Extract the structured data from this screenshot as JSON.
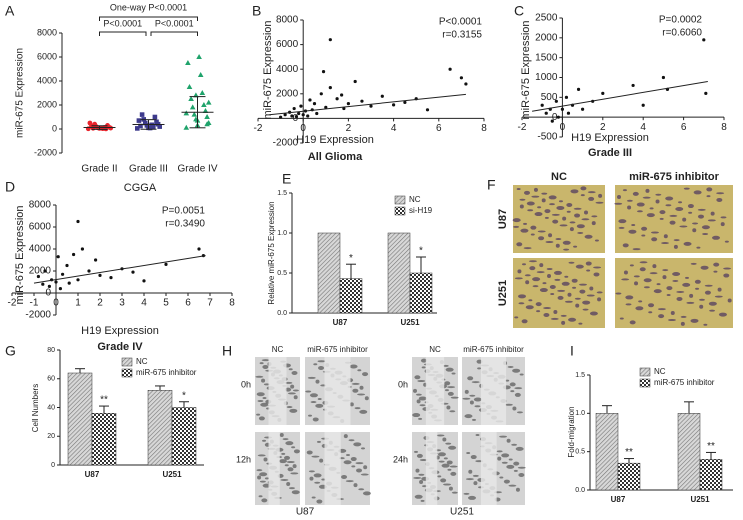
{
  "chart_data": [
    {
      "type": "dot_plot",
      "panel": "A",
      "ylabel": "miR-675 Expression",
      "xlabel": "CGGA",
      "categories": [
        "Grade II",
        "Grade III",
        "Grade IV"
      ],
      "colors": [
        "#e8242c",
        "#3d3a8c",
        "#1fa36b"
      ],
      "markers": [
        "circle",
        "square",
        "triangle"
      ],
      "values": [
        [
          20,
          50,
          80,
          100,
          150,
          200,
          300,
          400,
          10,
          60,
          120,
          250,
          30,
          500,
          90
        ],
        [
          50,
          100,
          200,
          300,
          400,
          500,
          600,
          800,
          1000,
          1200,
          150,
          250,
          350,
          700,
          80
        ],
        [
          100,
          300,
          500,
          800,
          1000,
          1200,
          1500,
          1800,
          2000,
          2500,
          3000,
          3500,
          4500,
          5500,
          6000,
          1300,
          700,
          2200,
          2800,
          400
        ]
      ],
      "means": [
        120,
        380,
        1400
      ],
      "sd": [
        150,
        400,
        1300
      ],
      "comparisons": [
        "One-way P<0.0001",
        "P<0.0001",
        "P<0.0001"
      ],
      "ylim": [
        -2000,
        8000
      ],
      "yticks": [
        -2000,
        0,
        2000,
        4000,
        6000,
        8000
      ]
    },
    {
      "type": "scatter",
      "panel": "B",
      "ylabel": "miR-675 Expression",
      "xlabel": "H19 Expression",
      "subtitle": "All Glioma",
      "annotations": [
        "P<0.0001",
        "r=0.3155"
      ],
      "x": [
        -1,
        -0.8,
        -0.6,
        -0.5,
        -0.4,
        -0.3,
        -0.2,
        -0.1,
        0,
        0.1,
        0.2,
        0.3,
        0.4,
        0.5,
        0.6,
        0.8,
        1.0,
        1.2,
        1.5,
        1.8,
        2.0,
        2.3,
        2.6,
        3.0,
        3.5,
        4.0,
        4.5,
        5.0,
        5.5,
        6.5,
        7.0,
        7.2,
        1.2,
        0.9,
        1.7
      ],
      "y": [
        100,
        300,
        500,
        200,
        800,
        150,
        400,
        1000,
        300,
        600,
        200,
        1500,
        700,
        1200,
        400,
        2000,
        900,
        6400,
        1600,
        800,
        1200,
        3000,
        1400,
        1000,
        1800,
        1100,
        1300,
        1600,
        700,
        4000,
        3300,
        2800,
        2500,
        3800,
        1900
      ],
      "fit": {
        "x": [
          -1.5,
          7.2
        ],
        "y": [
          300,
          1950
        ]
      },
      "xlim": [
        -2,
        8
      ],
      "xticks": [
        -2,
        0,
        2,
        4,
        6,
        8
      ],
      "ylim": [
        -2000,
        8000
      ],
      "yticks": [
        -2000,
        0,
        2000,
        4000,
        6000,
        8000
      ]
    },
    {
      "type": "scatter",
      "panel": "C",
      "ylabel": "miR-675 Expression",
      "xlabel": "H19 Expression",
      "subtitle": "Grade III",
      "annotations": [
        "P=0.0002",
        "r=0.6060"
      ],
      "x": [
        -1,
        -0.8,
        -0.6,
        -0.5,
        -0.3,
        -0.2,
        0,
        0.2,
        0.3,
        0.5,
        0.8,
        1.0,
        1.5,
        2.0,
        3.5,
        4.0,
        5.0,
        5.2,
        7.0,
        7.1
      ],
      "y": [
        300,
        100,
        200,
        -100,
        400,
        0,
        200,
        500,
        100,
        300,
        700,
        200,
        400,
        600,
        800,
        300,
        1000,
        700,
        1950,
        600
      ],
      "fit": {
        "x": [
          -1.5,
          7.2
        ],
        "y": [
          150,
          900
        ]
      },
      "xlim": [
        -2,
        8
      ],
      "xticks": [
        -2,
        0,
        2,
        4,
        6,
        8
      ],
      "ylim": [
        -500,
        2500
      ],
      "yticks": [
        -500,
        0,
        500,
        1000,
        1500,
        2000,
        2500
      ]
    },
    {
      "type": "scatter",
      "panel": "D",
      "ylabel": "miR-675 Expression",
      "xlabel": "H19 Expression",
      "subtitle": "Grade IV",
      "annotations": [
        "P=0.0051",
        "r=0.3490"
      ],
      "x": [
        -0.8,
        -0.6,
        -0.5,
        -0.3,
        -0.2,
        0,
        0.1,
        0.2,
        0.3,
        0.5,
        0.6,
        0.8,
        1.0,
        1.0,
        1.2,
        1.5,
        1.8,
        2.0,
        2.5,
        3.0,
        3.5,
        4.0,
        5.0,
        6.5,
        6.7
      ],
      "y": [
        1500,
        800,
        2000,
        600,
        1200,
        1000,
        3300,
        400,
        1700,
        2500,
        900,
        3500,
        6500,
        1200,
        4000,
        2000,
        3000,
        1600,
        1400,
        2200,
        1900,
        1100,
        2600,
        4000,
        3400
      ],
      "fit": {
        "x": [
          -1,
          6.8
        ],
        "y": [
          900,
          3400
        ]
      },
      "xlim": [
        -2,
        8
      ],
      "xticks": [
        -2,
        -1,
        0,
        1,
        2,
        3,
        4,
        5,
        6,
        7,
        8
      ],
      "ylim": [
        -2000,
        8000
      ],
      "yticks": [
        -2000,
        0,
        2000,
        4000,
        6000,
        8000
      ]
    },
    {
      "type": "bar",
      "panel": "E",
      "ylabel": "Relative miR-675 Expression",
      "categories": [
        "U87",
        "U251"
      ],
      "series": [
        {
          "name": "NC",
          "pattern": "lines",
          "values": [
            1,
            1
          ]
        },
        {
          "name": "si-H19",
          "pattern": "checker",
          "values": [
            0.43,
            0.5
          ],
          "errors": [
            0.18,
            0.2
          ],
          "significance": [
            "*",
            "*"
          ]
        }
      ],
      "ylim": [
        0,
        1.5
      ],
      "yticks": [
        {
          "value": 0,
          "label": "0.0"
        },
        0.5,
        {
          "value": 1,
          "label": "1.0"
        },
        1.5
      ]
    },
    {
      "type": "bar",
      "panel": "G",
      "ylabel": "Cell Numbers",
      "categories": [
        "U87",
        "U251"
      ],
      "series": [
        {
          "name": "NC",
          "pattern": "lines",
          "values": [
            64,
            52
          ],
          "errors": [
            3,
            3
          ]
        },
        {
          "name": "miR-675 inhibitor",
          "pattern": "checker",
          "values": [
            36,
            40
          ],
          "errors": [
            5,
            4
          ],
          "significance": [
            "**",
            "*"
          ]
        }
      ],
      "ylim": [
        0,
        80
      ],
      "yticks": [
        0,
        20,
        40,
        60,
        80
      ]
    },
    {
      "type": "bar",
      "panel": "I",
      "ylabel": "Fold-migration",
      "categories": [
        "U87",
        "U251"
      ],
      "series": [
        {
          "name": "NC",
          "pattern": "lines",
          "values": [
            1.0,
            1.0
          ],
          "errors": [
            0.1,
            0.15
          ]
        },
        {
          "name": "miR-675 inhibitor",
          "pattern": "checker",
          "values": [
            0.35,
            0.4
          ],
          "errors": [
            0.06,
            0.09
          ],
          "significance": [
            "**",
            "**"
          ]
        }
      ],
      "ylim": [
        0,
        1.5
      ],
      "yticks": [
        {
          "value": 0,
          "label": "0.0"
        },
        0.5,
        {
          "value": 1,
          "label": "1.0"
        },
        1.5
      ]
    }
  ],
  "image_panels": [
    {
      "panel": "F",
      "columns": [
        "NC",
        "miR-675 inhibitor"
      ],
      "rows": [
        "U87",
        "U251"
      ]
    },
    {
      "panel": "H",
      "groups": [
        {
          "label": "U87",
          "columns": [
            "NC",
            "miR-675 inhibitor"
          ],
          "rows": [
            "0h",
            "12h"
          ]
        },
        {
          "label": "U251",
          "columns": [
            "NC",
            "miR-675 inhibitor"
          ],
          "rows": [
            "0h",
            "24h"
          ]
        }
      ]
    }
  ]
}
